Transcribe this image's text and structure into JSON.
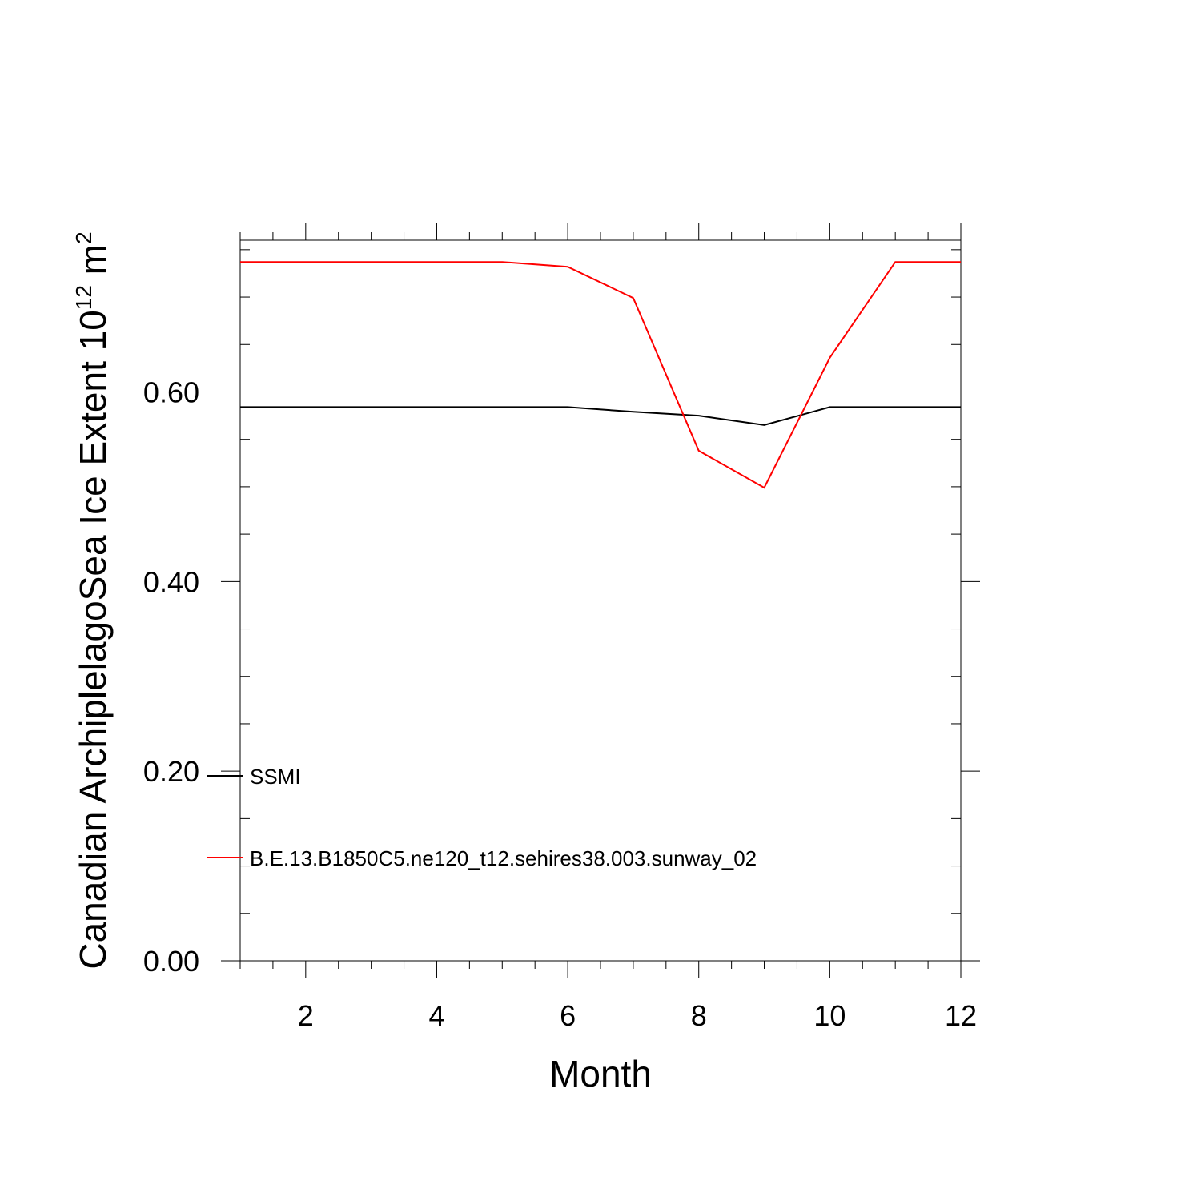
{
  "chart_data": {
    "type": "line",
    "xlabel": "Month",
    "ylabel": {
      "prefix": "Canadian ArchiplelagoSea Ice Extent 10",
      "superscript1": "12",
      "middle": " m",
      "superscript2": "2"
    },
    "xlim": [
      1,
      12
    ],
    "ylim": [
      0,
      0.76
    ],
    "x_ticks": [
      2,
      4,
      6,
      8,
      10,
      12
    ],
    "x_tick_labels": [
      "2",
      "4",
      "6",
      "8",
      "10",
      "12"
    ],
    "y_ticks": [
      0.0,
      0.2,
      0.4,
      0.6
    ],
    "y_tick_labels": [
      "0.00",
      "0.20",
      "0.40",
      "0.60"
    ],
    "x": [
      1,
      2,
      3,
      4,
      5,
      6,
      7,
      8,
      9,
      10,
      11,
      12
    ],
    "series": [
      {
        "name": "SSMI",
        "color": "#000000",
        "values": [
          0.584,
          0.584,
          0.584,
          0.584,
          0.584,
          0.584,
          0.579,
          0.575,
          0.565,
          0.584,
          0.584,
          0.584
        ]
      },
      {
        "name": "B.E.13.B1850C5.ne120_t12.sehires38.003.sunway_02",
        "color": "#ff0000",
        "values": [
          0.737,
          0.737,
          0.737,
          0.737,
          0.737,
          0.732,
          0.699,
          0.538,
          0.499,
          0.636,
          0.737,
          0.737
        ]
      }
    ],
    "grid": false,
    "legend_placement": "lower-left"
  }
}
